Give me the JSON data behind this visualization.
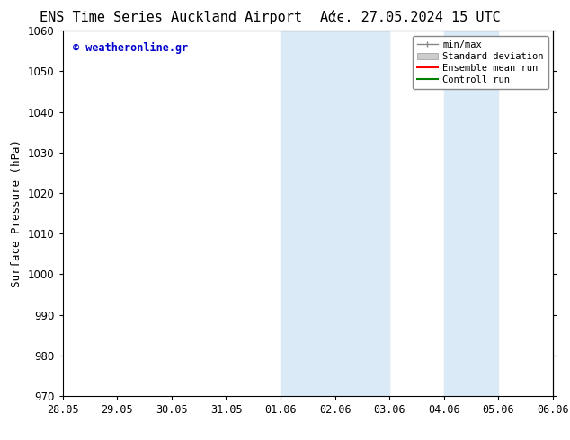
{
  "title_left": "ENS Time Series Auckland Airport",
  "title_right": "Αάϵ. 27.05.2024 15 UTC",
  "ylabel": "Surface Pressure (hPa)",
  "ylim": [
    970,
    1060
  ],
  "yticks": [
    970,
    980,
    990,
    1000,
    1010,
    1020,
    1030,
    1040,
    1050,
    1060
  ],
  "xtick_labels": [
    "28.05",
    "29.05",
    "30.05",
    "31.05",
    "01.06",
    "02.06",
    "03.06",
    "04.06",
    "05.06",
    "06.06"
  ],
  "xlim": [
    0,
    9
  ],
  "shaded_regions": [
    {
      "x_start": 4,
      "x_end": 6,
      "color": "#daeaf7"
    },
    {
      "x_start": 7,
      "x_end": 8,
      "color": "#daeaf7"
    }
  ],
  "watermark": "© weatheronline.gr",
  "watermark_color": "#0000cc",
  "legend_entries": [
    {
      "label": "min/max",
      "color": "#aaaaaa",
      "style": "line_with_caps"
    },
    {
      "label": "Standard deviation",
      "color": "#cccccc",
      "style": "filled"
    },
    {
      "label": "Ensemble mean run",
      "color": "#ff0000",
      "style": "line"
    },
    {
      "label": "Controll run",
      "color": "#008000",
      "style": "line"
    }
  ],
  "background_color": "#ffffff",
  "plot_bg_color": "#ffffff",
  "border_color": "#000000",
  "title_fontsize": 11,
  "axis_fontsize": 9,
  "tick_fontsize": 8.5
}
